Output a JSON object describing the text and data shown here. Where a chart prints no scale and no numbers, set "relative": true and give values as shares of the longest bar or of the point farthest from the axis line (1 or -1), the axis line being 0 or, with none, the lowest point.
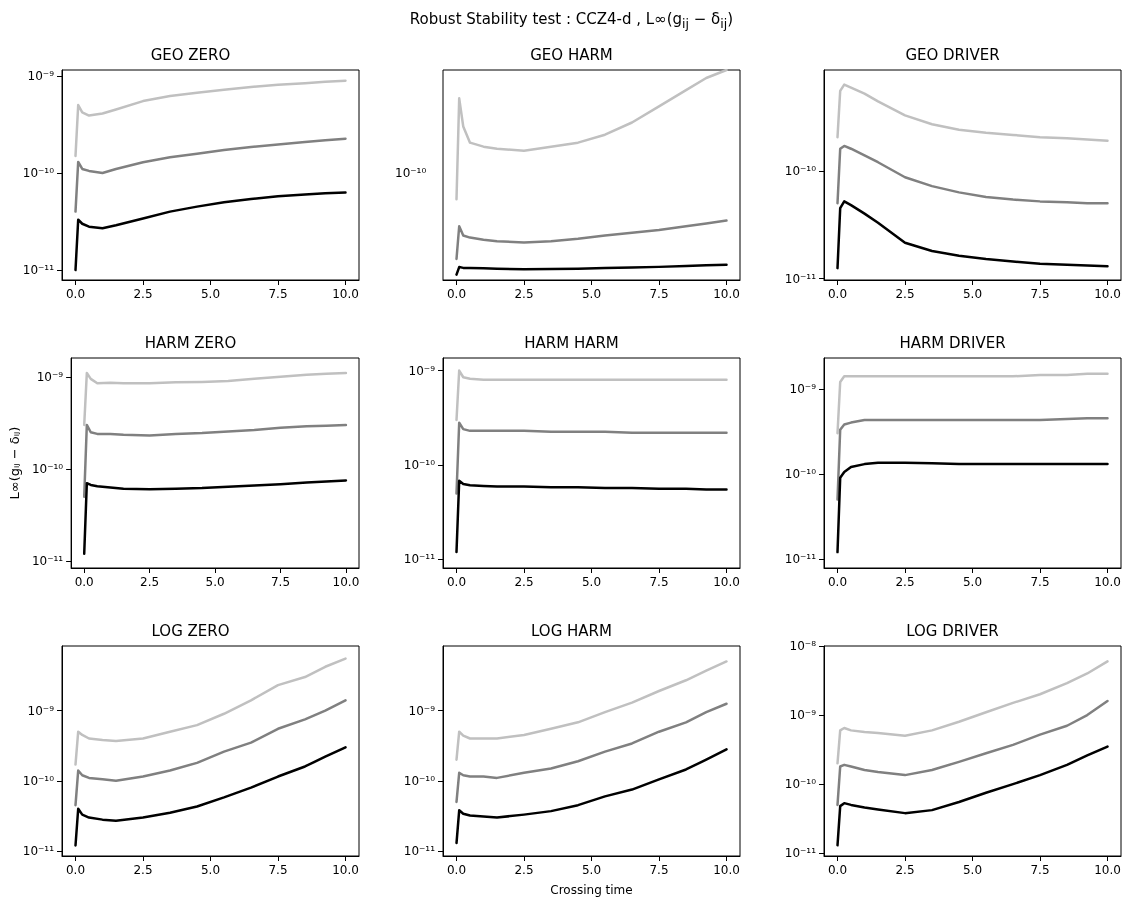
{
  "chart_data": [
    {
      "type": "line",
      "title": "GEO ZERO",
      "annotations": [
        "Robust Stability test : CCZ4-d , L∞(g$_{ij}$ − δ$_{ij}$)"
      ],
      "log": "y",
      "x": [
        0,
        0.1,
        0.25,
        0.5,
        1,
        1.5,
        2.5,
        3.5,
        4.5,
        5.5,
        6.5,
        7.5,
        8.5,
        9.25,
        10
      ],
      "xlim": [
        -0.5,
        10.5
      ],
      "xticks": [
        {
          "value": 0,
          "label": "0.0"
        },
        {
          "value": 2.5,
          "label": "2.5"
        },
        {
          "value": 5,
          "label": "5.0"
        },
        {
          "value": 7.5,
          "label": "7.5"
        },
        {
          "value": 10,
          "label": "10.0"
        }
      ],
      "ylim": [
        7.9e-12,
        1.15e-09
      ],
      "yticks": [
        {
          "value": 1e-11,
          "label": "10⁻¹¹"
        },
        {
          "value": 1e-10,
          "label": "10⁻¹⁰"
        },
        {
          "value": 1e-09,
          "label": "10⁻⁹"
        }
      ],
      "series": [
        {
          "color": "#c0c0c0",
          "values": [
            1.5e-10,
            5e-10,
            4.2e-10,
            3.9e-10,
            4.1e-10,
            4.5e-10,
            5.5e-10,
            6.2e-10,
            6.7e-10,
            7.2e-10,
            7.7e-10,
            8.1e-10,
            8.4e-10,
            8.7e-10,
            8.9e-10
          ]
        },
        {
          "color": "#808080",
          "values": [
            4e-11,
            1.3e-10,
            1.1e-10,
            1.05e-10,
            1e-10,
            1.1e-10,
            1.29e-10,
            1.45e-10,
            1.58e-10,
            1.72e-10,
            1.85e-10,
            1.96e-10,
            2.08e-10,
            2.17e-10,
            2.25e-10
          ]
        },
        {
          "color": "#000000",
          "values": [
            1e-11,
            3.3e-11,
            3e-11,
            2.8e-11,
            2.7e-11,
            2.9e-11,
            3.4e-11,
            4e-11,
            4.5e-11,
            5e-11,
            5.4e-11,
            5.75e-11,
            6e-11,
            6.2e-11,
            6.3e-11
          ]
        }
      ]
    },
    {
      "type": "line",
      "title": "GEO HARM",
      "relative": true,
      "annotations": [
        "10⁻¹⁰"
      ],
      "x": [
        0,
        0.1,
        0.25,
        0.5,
        1,
        1.5,
        2.5,
        3.5,
        4.5,
        5.5,
        6.5,
        7.5,
        8.5,
        9.25,
        10
      ],
      "xlim": [
        -0.5,
        10.5
      ],
      "xticks": [
        {
          "value": 0,
          "label": "0.0"
        },
        {
          "value": 2.5,
          "label": "2.5"
        },
        {
          "value": 5,
          "label": "5.0"
        },
        {
          "value": 7.5,
          "label": "7.5"
        },
        {
          "value": 10,
          "label": "10.0"
        }
      ],
      "series": [
        {
          "color": "#c0c0c0",
          "values": [
            0.385,
            0.865,
            0.731,
            0.654,
            0.635,
            0.625,
            0.615,
            0.635,
            0.654,
            0.692,
            0.75,
            0.827,
            0.904,
            0.962,
            1
          ]
        },
        {
          "color": "#808080",
          "values": [
            0.1,
            0.256,
            0.212,
            0.202,
            0.192,
            0.185,
            0.179,
            0.185,
            0.196,
            0.212,
            0.225,
            0.238,
            0.256,
            0.269,
            0.283
          ]
        },
        {
          "color": "#000000",
          "values": [
            0.0256,
            0.0615,
            0.0577,
            0.0567,
            0.0558,
            0.0538,
            0.0512,
            0.0519,
            0.0538,
            0.0567,
            0.0596,
            0.0625,
            0.0663,
            0.0702,
            0.0731
          ]
        }
      ]
    },
    {
      "type": "line",
      "title": "GEO DRIVER",
      "log": "y",
      "x": [
        0,
        0.1,
        0.25,
        0.5,
        1,
        1.5,
        2.5,
        3.5,
        4.5,
        5.5,
        6.5,
        7.5,
        8.5,
        9.25,
        10
      ],
      "xlim": [
        -0.5,
        10.5
      ],
      "xticks": [
        {
          "value": 0,
          "label": "0.0"
        },
        {
          "value": 2.5,
          "label": "2.5"
        },
        {
          "value": 5,
          "label": "5.0"
        },
        {
          "value": 7.5,
          "label": "7.5"
        },
        {
          "value": 10,
          "label": "10.0"
        }
      ],
      "ylim": [
        9.7e-12,
        8.6e-10
      ],
      "yticks": [
        {
          "value": 1e-11,
          "label": "10⁻¹¹"
        },
        {
          "value": 1e-10,
          "label": "10⁻¹⁰"
        }
      ],
      "series": [
        {
          "color": "#c0c0c0",
          "values": [
            2.05e-10,
            5.5e-10,
            6.3e-10,
            5.9e-10,
            5.2e-10,
            4.4e-10,
            3.26e-10,
            2.7e-10,
            2.4e-10,
            2.25e-10,
            2.15e-10,
            2.05e-10,
            2e-10,
            1.95e-10,
            1.9e-10
          ]
        },
        {
          "color": "#808080",
          "values": [
            5e-11,
            1.6e-10,
            1.7e-10,
            1.6e-10,
            1.39e-10,
            1.2e-10,
            8.7e-11,
            7.2e-11,
            6.3e-11,
            5.7e-11,
            5.4e-11,
            5.2e-11,
            5.1e-11,
            5e-11,
            5e-11
          ]
        },
        {
          "color": "#000000",
          "values": [
            1.25e-11,
            4.5e-11,
            5.2e-11,
            4.8e-11,
            4e-11,
            3.3e-11,
            2.15e-11,
            1.8e-11,
            1.63e-11,
            1.52e-11,
            1.44e-11,
            1.37e-11,
            1.34e-11,
            1.32e-11,
            1.3e-11
          ]
        }
      ]
    },
    {
      "type": "line",
      "title": "HARM ZERO",
      "ylabel": "L∞(gᵢⱼ − δᵢⱼ)",
      "log": "y",
      "x": [
        0,
        0.1,
        0.25,
        0.5,
        1,
        1.5,
        2.5,
        3.5,
        4.5,
        5.5,
        6.5,
        7.5,
        8.5,
        9.25,
        10
      ],
      "xlim": [
        -0.5,
        10.5
      ],
      "xticks": [
        {
          "value": 0,
          "label": "0.0"
        },
        {
          "value": 2.5,
          "label": "2.5"
        },
        {
          "value": 5,
          "label": "5.0"
        },
        {
          "value": 7.5,
          "label": "7.5"
        },
        {
          "value": 10,
          "label": "10.0"
        }
      ],
      "ylim": [
        8.4e-12,
        1.6e-09
      ],
      "yticks": [
        {
          "value": 1e-11,
          "label": "10⁻¹¹"
        },
        {
          "value": 1e-10,
          "label": "10⁻¹⁰"
        },
        {
          "value": 1e-09,
          "label": "10⁻⁹"
        }
      ],
      "series": [
        {
          "color": "#c0c0c0",
          "values": [
            3e-10,
            1.1e-09,
            9.5e-10,
            8.5e-10,
            8.6e-10,
            8.5e-10,
            8.5e-10,
            8.7e-10,
            8.8e-10,
            9e-10,
            9.5e-10,
            1e-09,
            1.05e-09,
            1.08e-09,
            1.1e-09
          ]
        },
        {
          "color": "#808080",
          "values": [
            5e-11,
            3e-10,
            2.5e-10,
            2.4e-10,
            2.4e-10,
            2.35e-10,
            2.3e-10,
            2.4e-10,
            2.45e-10,
            2.55e-10,
            2.65e-10,
            2.8e-10,
            2.9e-10,
            2.95e-10,
            3e-10
          ]
        },
        {
          "color": "#000000",
          "values": [
            1.2e-11,
            7e-11,
            6.7e-11,
            6.5e-11,
            6.3e-11,
            6.1e-11,
            6e-11,
            6.1e-11,
            6.2e-11,
            6.4e-11,
            6.6e-11,
            6.8e-11,
            7.1e-11,
            7.3e-11,
            7.5e-11
          ]
        }
      ]
    },
    {
      "type": "line",
      "title": "HARM HARM",
      "log": "y",
      "x": [
        0,
        0.1,
        0.25,
        0.5,
        1,
        1.5,
        2.5,
        3.5,
        4.5,
        5.5,
        6.5,
        7.5,
        8.5,
        9.25,
        10
      ],
      "xlim": [
        -0.5,
        10.5
      ],
      "xticks": [
        {
          "value": 0,
          "label": "0.0"
        },
        {
          "value": 2.5,
          "label": "2.5"
        },
        {
          "value": 5,
          "label": "5.0"
        },
        {
          "value": 7.5,
          "label": "7.5"
        },
        {
          "value": 10,
          "label": "10.0"
        }
      ],
      "ylim": [
        8.1e-12,
        1.36e-09
      ],
      "yticks": [
        {
          "value": 1e-11,
          "label": "10⁻¹¹"
        },
        {
          "value": 1e-10,
          "label": "10⁻¹⁰"
        },
        {
          "value": 1e-09,
          "label": "10⁻⁹"
        }
      ],
      "series": [
        {
          "color": "#c0c0c0",
          "values": [
            3e-10,
            1e-09,
            8.5e-10,
            8.2e-10,
            8e-10,
            8e-10,
            8e-10,
            8e-10,
            8e-10,
            8e-10,
            8e-10,
            8e-10,
            8e-10,
            8e-10,
            8e-10
          ]
        },
        {
          "color": "#808080",
          "values": [
            5e-11,
            2.8e-10,
            2.4e-10,
            2.3e-10,
            2.3e-10,
            2.3e-10,
            2.3e-10,
            2.25e-10,
            2.25e-10,
            2.25e-10,
            2.2e-10,
            2.2e-10,
            2.2e-10,
            2.2e-10,
            2.2e-10
          ]
        },
        {
          "color": "#000000",
          "values": [
            1.2e-11,
            6.8e-11,
            6.3e-11,
            6.1e-11,
            6e-11,
            5.9e-11,
            5.9e-11,
            5.8e-11,
            5.8e-11,
            5.7e-11,
            5.7e-11,
            5.6e-11,
            5.6e-11,
            5.5e-11,
            5.5e-11
          ]
        }
      ]
    },
    {
      "type": "line",
      "title": "HARM DRIVER",
      "log": "y",
      "x": [
        0,
        0.1,
        0.25,
        0.5,
        1,
        1.5,
        2.5,
        3.5,
        4.5,
        5.5,
        6.5,
        7.5,
        8.5,
        9.25,
        10
      ],
      "xlim": [
        -0.5,
        10.5
      ],
      "xticks": [
        {
          "value": 0,
          "label": "0.0"
        },
        {
          "value": 2.5,
          "label": "2.5"
        },
        {
          "value": 5,
          "label": "5.0"
        },
        {
          "value": 7.5,
          "label": "7.5"
        },
        {
          "value": 10,
          "label": "10.0"
        }
      ],
      "ylim": [
        7.8e-12,
        2.3e-09
      ],
      "yticks": [
        {
          "value": 1e-11,
          "label": "10⁻¹¹"
        },
        {
          "value": 1e-10,
          "label": "10⁻¹⁰"
        },
        {
          "value": 1e-09,
          "label": "10⁻⁹"
        }
      ],
      "series": [
        {
          "color": "#c0c0c0",
          "values": [
            3e-10,
            1.2e-09,
            1.4e-09,
            1.4e-09,
            1.4e-09,
            1.4e-09,
            1.4e-09,
            1.4e-09,
            1.4e-09,
            1.4e-09,
            1.4e-09,
            1.45e-09,
            1.45e-09,
            1.5e-09,
            1.5e-09
          ]
        },
        {
          "color": "#808080",
          "values": [
            5e-11,
            3.3e-10,
            3.8e-10,
            4e-10,
            4.3e-10,
            4.3e-10,
            4.3e-10,
            4.3e-10,
            4.3e-10,
            4.3e-10,
            4.3e-10,
            4.3e-10,
            4.4e-10,
            4.5e-10,
            4.5e-10
          ]
        },
        {
          "color": "#000000",
          "values": [
            1.2e-11,
            9e-11,
            1.05e-10,
            1.2e-10,
            1.3e-10,
            1.35e-10,
            1.35e-10,
            1.33e-10,
            1.3e-10,
            1.3e-10,
            1.3e-10,
            1.3e-10,
            1.3e-10,
            1.3e-10,
            1.3e-10
          ]
        }
      ]
    },
    {
      "type": "line",
      "title": "LOG ZERO",
      "log": "y",
      "x": [
        0,
        0.1,
        0.25,
        0.5,
        1,
        1.5,
        2.5,
        3.5,
        4.5,
        5.5,
        6.5,
        7.5,
        8.5,
        9.25,
        10
      ],
      "xlim": [
        -0.5,
        10.5
      ],
      "xticks": [
        {
          "value": 0,
          "label": "0.0"
        },
        {
          "value": 2.5,
          "label": "2.5"
        },
        {
          "value": 5,
          "label": "5.0"
        },
        {
          "value": 7.5,
          "label": "7.5"
        },
        {
          "value": 10,
          "label": "10.0"
        }
      ],
      "ylim": [
        8.5e-12,
        8.3e-09
      ],
      "yticks": [
        {
          "value": 1e-11,
          "label": "10⁻¹¹"
        },
        {
          "value": 1e-10,
          "label": "10⁻¹⁰"
        },
        {
          "value": 1e-09,
          "label": "10⁻⁹"
        }
      ],
      "series": [
        {
          "color": "#c0c0c0",
          "values": [
            1.7e-10,
            5e-10,
            4.5e-10,
            4e-10,
            3.8e-10,
            3.7e-10,
            4e-10,
            5e-10,
            6.2e-10,
            9e-10,
            1.4e-09,
            2.3e-09,
            3e-09,
            4.2e-09,
            5.5e-09
          ]
        },
        {
          "color": "#808080",
          "values": [
            4.5e-11,
            1.4e-10,
            1.2e-10,
            1.1e-10,
            1.05e-10,
            1e-10,
            1.15e-10,
            1.4e-10,
            1.8e-10,
            2.6e-10,
            3.5e-10,
            5.5e-10,
            7.5e-10,
            1e-09,
            1.4e-09
          ]
        },
        {
          "color": "#000000",
          "values": [
            1.2e-11,
            4e-11,
            3.3e-11,
            3e-11,
            2.8e-11,
            2.7e-11,
            3e-11,
            3.5e-11,
            4.3e-11,
            5.8e-11,
            8e-11,
            1.15e-10,
            1.6e-10,
            2.2e-10,
            3e-10
          ]
        }
      ]
    },
    {
      "type": "line",
      "title": "LOG HARM",
      "xlabel": "Crossing time",
      "log": "y",
      "x": [
        0,
        0.1,
        0.25,
        0.5,
        1,
        1.5,
        2.5,
        3.5,
        4.5,
        5.5,
        6.5,
        7.5,
        8.5,
        9.25,
        10
      ],
      "xlim": [
        -0.5,
        10.5
      ],
      "xticks": [
        {
          "value": 0,
          "label": "0.0"
        },
        {
          "value": 2.5,
          "label": "2.5"
        },
        {
          "value": 5,
          "label": "5.0"
        },
        {
          "value": 7.5,
          "label": "7.5"
        },
        {
          "value": 10,
          "label": "10.0"
        }
      ],
      "ylim": [
        8.5e-12,
        8.3e-09
      ],
      "yticks": [
        {
          "value": 1e-11,
          "label": "10⁻¹¹"
        },
        {
          "value": 1e-10,
          "label": "10⁻¹⁰"
        },
        {
          "value": 1e-09,
          "label": "10⁻⁹"
        }
      ],
      "series": [
        {
          "color": "#c0c0c0",
          "values": [
            2e-10,
            5e-10,
            4.4e-10,
            4e-10,
            4e-10,
            4e-10,
            4.5e-10,
            5.5e-10,
            6.8e-10,
            9.5e-10,
            1.3e-09,
            1.9e-09,
            2.7e-09,
            3.7e-09,
            5e-09
          ]
        },
        {
          "color": "#808080",
          "values": [
            5e-11,
            1.3e-10,
            1.2e-10,
            1.15e-10,
            1.15e-10,
            1.1e-10,
            1.3e-10,
            1.5e-10,
            1.9e-10,
            2.6e-10,
            3.4e-10,
            5e-10,
            6.8e-10,
            9.5e-10,
            1.25e-09
          ]
        },
        {
          "color": "#000000",
          "values": [
            1.3e-11,
            3.8e-11,
            3.4e-11,
            3.2e-11,
            3.1e-11,
            3e-11,
            3.3e-11,
            3.7e-11,
            4.5e-11,
            6e-11,
            7.5e-11,
            1.05e-10,
            1.45e-10,
            2e-10,
            2.8e-10
          ]
        }
      ]
    },
    {
      "type": "line",
      "title": "LOG DRIVER",
      "log": "y",
      "x": [
        0,
        0.1,
        0.25,
        0.5,
        1,
        1.5,
        2.5,
        3.5,
        4.5,
        5.5,
        6.5,
        7.5,
        8.5,
        9.25,
        10
      ],
      "xlim": [
        -0.5,
        10.5
      ],
      "xticks": [
        {
          "value": 0,
          "label": "0.0"
        },
        {
          "value": 2.5,
          "label": "2.5"
        },
        {
          "value": 5,
          "label": "5.0"
        },
        {
          "value": 7.5,
          "label": "7.5"
        },
        {
          "value": 10,
          "label": "10.0"
        }
      ],
      "ylim": [
        9.1e-12,
        1e-08
      ],
      "yticks": [
        {
          "value": 1e-11,
          "label": "10⁻¹¹"
        },
        {
          "value": 1e-10,
          "label": "10⁻¹⁰"
        },
        {
          "value": 1e-09,
          "label": "10⁻⁹"
        },
        {
          "value": 1e-08,
          "label": "10⁻⁸"
        }
      ],
      "series": [
        {
          "color": "#c0c0c0",
          "values": [
            2e-10,
            6e-10,
            6.5e-10,
            6e-10,
            5.7e-10,
            5.5e-10,
            5e-10,
            6e-10,
            8e-10,
            1.1e-09,
            1.5e-09,
            2e-09,
            2.9e-09,
            4e-09,
            6e-09
          ]
        },
        {
          "color": "#808080",
          "values": [
            5e-11,
            1.8e-10,
            1.9e-10,
            1.8e-10,
            1.6e-10,
            1.5e-10,
            1.35e-10,
            1.6e-10,
            2.1e-10,
            2.8e-10,
            3.7e-10,
            5.2e-10,
            7e-10,
            1e-09,
            1.6e-09
          ]
        },
        {
          "color": "#000000",
          "values": [
            1.3e-11,
            4.8e-11,
            5.3e-11,
            5e-11,
            4.6e-11,
            4.3e-11,
            3.8e-11,
            4.2e-11,
            5.5e-11,
            7.5e-11,
            1e-10,
            1.35e-10,
            1.9e-10,
            2.6e-10,
            3.5e-10
          ]
        }
      ]
    }
  ]
}
